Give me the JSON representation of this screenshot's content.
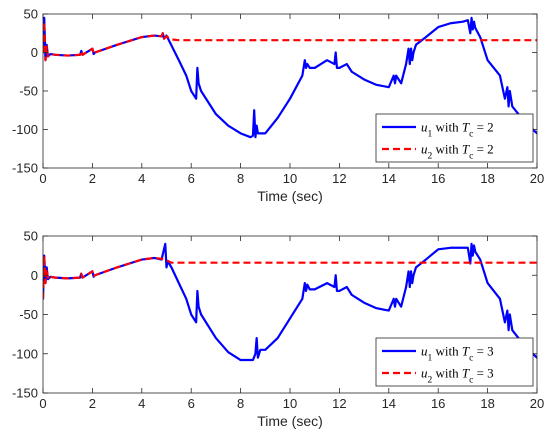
{
  "chart_data": [
    {
      "type": "line",
      "xlabel": "Time (sec)",
      "ylabel": "",
      "xlim": [
        0,
        20
      ],
      "ylim": [
        -150,
        50
      ],
      "xticks": [
        0,
        2,
        4,
        6,
        8,
        10,
        12,
        14,
        16,
        18,
        20
      ],
      "yticks": [
        -150,
        -100,
        -50,
        0,
        50
      ],
      "grid": false,
      "legend_position": "bottom-right",
      "series": [
        {
          "name": "u1 with Tc = 2",
          "legend": {
            "var": "u",
            "sub": "1",
            "with": " with ",
            "param": "T",
            "param_sub": "c",
            "eq": " = 2"
          },
          "color": "#0000ff",
          "style": "solid",
          "x": [
            0,
            0.05,
            0.1,
            0.15,
            0.2,
            0.3,
            0.5,
            1.0,
            1.5,
            1.55,
            1.6,
            2.0,
            2.05,
            2.1,
            3.0,
            4.0,
            4.5,
            4.8,
            4.85,
            4.9,
            5.0,
            5.5,
            5.8,
            6.0,
            6.2,
            6.25,
            6.3,
            6.4,
            7.0,
            7.5,
            8.0,
            8.4,
            8.5,
            8.55,
            8.6,
            8.65,
            8.7,
            9.0,
            9.5,
            10.0,
            10.5,
            10.6,
            10.65,
            10.7,
            10.8,
            11.0,
            11.5,
            11.8,
            11.85,
            11.9,
            12.0,
            12.3,
            12.5,
            13.0,
            13.5,
            14.0,
            14.2,
            14.25,
            14.3,
            14.5,
            14.7,
            14.8,
            14.85,
            14.9,
            14.95,
            15.0,
            15.1,
            15.5,
            16.0,
            16.5,
            17.0,
            17.2,
            17.3,
            17.35,
            17.4,
            17.45,
            17.5,
            17.7,
            18.0,
            18.5,
            18.7,
            18.8,
            18.85,
            18.9,
            19.0,
            19.5,
            20.0
          ],
          "y": [
            0,
            45,
            -10,
            10,
            -5,
            -2,
            -3,
            -4,
            -3,
            2,
            -3,
            5,
            -2,
            0,
            10,
            20,
            22,
            21,
            25,
            18,
            22,
            -10,
            -30,
            -50,
            -60,
            -20,
            -40,
            -50,
            -80,
            -95,
            -105,
            -110,
            -108,
            -75,
            -110,
            -95,
            -105,
            -105,
            -85,
            -60,
            -30,
            -10,
            -20,
            -15,
            -20,
            -20,
            -10,
            -15,
            0,
            -20,
            -20,
            -15,
            -25,
            -35,
            -42,
            -45,
            -30,
            -40,
            -30,
            -40,
            -15,
            5,
            -15,
            5,
            -10,
            0,
            10,
            20,
            33,
            38,
            40,
            42,
            25,
            45,
            30,
            40,
            32,
            20,
            -10,
            -30,
            -60,
            -45,
            -70,
            -50,
            -70,
            -90,
            -105
          ]
        },
        {
          "name": "u2 with Tc = 2",
          "legend": {
            "var": "u",
            "sub": "2",
            "with": " with ",
            "param": "T",
            "param_sub": "c",
            "eq": " = 2"
          },
          "color": "#ff0000",
          "style": "dashed",
          "x": [
            0,
            0.05,
            0.1,
            0.15,
            0.2,
            0.3,
            0.5,
            1.0,
            1.5,
            1.55,
            1.6,
            2.0,
            2.05,
            2.1,
            3.0,
            4.0,
            4.5,
            4.8,
            4.85,
            4.9,
            5.0,
            5.2,
            5.5,
            20.0
          ],
          "y": [
            0,
            40,
            -10,
            8,
            -5,
            -2,
            -3,
            -4,
            -3,
            2,
            -3,
            5,
            -2,
            0,
            10,
            20,
            22,
            21,
            25,
            18,
            21,
            17,
            16,
            16
          ]
        }
      ]
    },
    {
      "type": "line",
      "xlabel": "Time (sec)",
      "ylabel": "",
      "xlim": [
        0,
        20
      ],
      "ylim": [
        -150,
        50
      ],
      "xticks": [
        0,
        2,
        4,
        6,
        8,
        10,
        12,
        14,
        16,
        18,
        20
      ],
      "yticks": [
        -150,
        -100,
        -50,
        0,
        50
      ],
      "grid": false,
      "legend_position": "bottom-right",
      "series": [
        {
          "name": "u1 with Tc = 3",
          "legend": {
            "var": "u",
            "sub": "1",
            "with": " with ",
            "param": "T",
            "param_sub": "c",
            "eq": " = 3"
          },
          "color": "#0000ff",
          "style": "solid",
          "x": [
            0,
            0.05,
            0.1,
            0.15,
            0.2,
            0.3,
            0.5,
            1.0,
            1.5,
            1.55,
            1.6,
            2.0,
            2.05,
            2.1,
            3.0,
            4.0,
            4.5,
            4.8,
            4.95,
            5.0,
            5.05,
            5.2,
            5.5,
            5.8,
            6.0,
            6.2,
            6.25,
            6.3,
            6.4,
            7.0,
            7.5,
            8.0,
            8.5,
            8.6,
            8.65,
            8.7,
            8.8,
            9.0,
            9.5,
            10.0,
            10.5,
            10.6,
            10.65,
            10.7,
            10.8,
            11.0,
            11.5,
            11.8,
            11.85,
            11.9,
            12.0,
            12.3,
            12.5,
            13.0,
            13.5,
            14.0,
            14.2,
            14.25,
            14.3,
            14.5,
            14.7,
            14.8,
            14.85,
            14.9,
            14.95,
            15.0,
            15.1,
            15.5,
            16.0,
            16.5,
            17.0,
            17.2,
            17.3,
            17.35,
            17.4,
            17.45,
            17.5,
            17.7,
            18.0,
            18.5,
            18.7,
            18.8,
            18.85,
            18.9,
            19.0,
            19.5,
            20.0
          ],
          "y": [
            -30,
            25,
            -10,
            10,
            -5,
            -2,
            -3,
            -4,
            -3,
            2,
            -3,
            5,
            -2,
            0,
            10,
            20,
            22,
            20,
            40,
            10,
            18,
            10,
            -10,
            -30,
            -50,
            -60,
            -20,
            -40,
            -50,
            -80,
            -98,
            -108,
            -108,
            -100,
            -80,
            -105,
            -95,
            -95,
            -80,
            -55,
            -30,
            -10,
            -20,
            -12,
            -18,
            -18,
            -10,
            -15,
            0,
            -20,
            -20,
            -15,
            -25,
            -35,
            -42,
            -45,
            -30,
            -40,
            -30,
            -40,
            -15,
            5,
            -15,
            5,
            -10,
            0,
            10,
            20,
            33,
            35,
            35,
            35,
            15,
            40,
            25,
            38,
            30,
            20,
            -10,
            -30,
            -60,
            -45,
            -70,
            -50,
            -70,
            -90,
            -105
          ]
        },
        {
          "name": "u2 with Tc = 3",
          "legend": {
            "var": "u",
            "sub": "2",
            "with": " with ",
            "param": "T",
            "param_sub": "c",
            "eq": " = 3"
          },
          "color": "#ff0000",
          "style": "dashed",
          "x": [
            0,
            0.05,
            0.1,
            0.15,
            0.2,
            0.3,
            0.5,
            1.0,
            1.5,
            1.55,
            1.6,
            2.0,
            2.05,
            2.1,
            3.0,
            4.0,
            4.5,
            4.8,
            5.0,
            5.2,
            5.5,
            20.0
          ],
          "y": [
            -30,
            25,
            -10,
            8,
            -5,
            -2,
            -3,
            -4,
            -3,
            2,
            -3,
            5,
            -2,
            0,
            10,
            20,
            22,
            21,
            19,
            16,
            16,
            16
          ]
        }
      ]
    }
  ]
}
